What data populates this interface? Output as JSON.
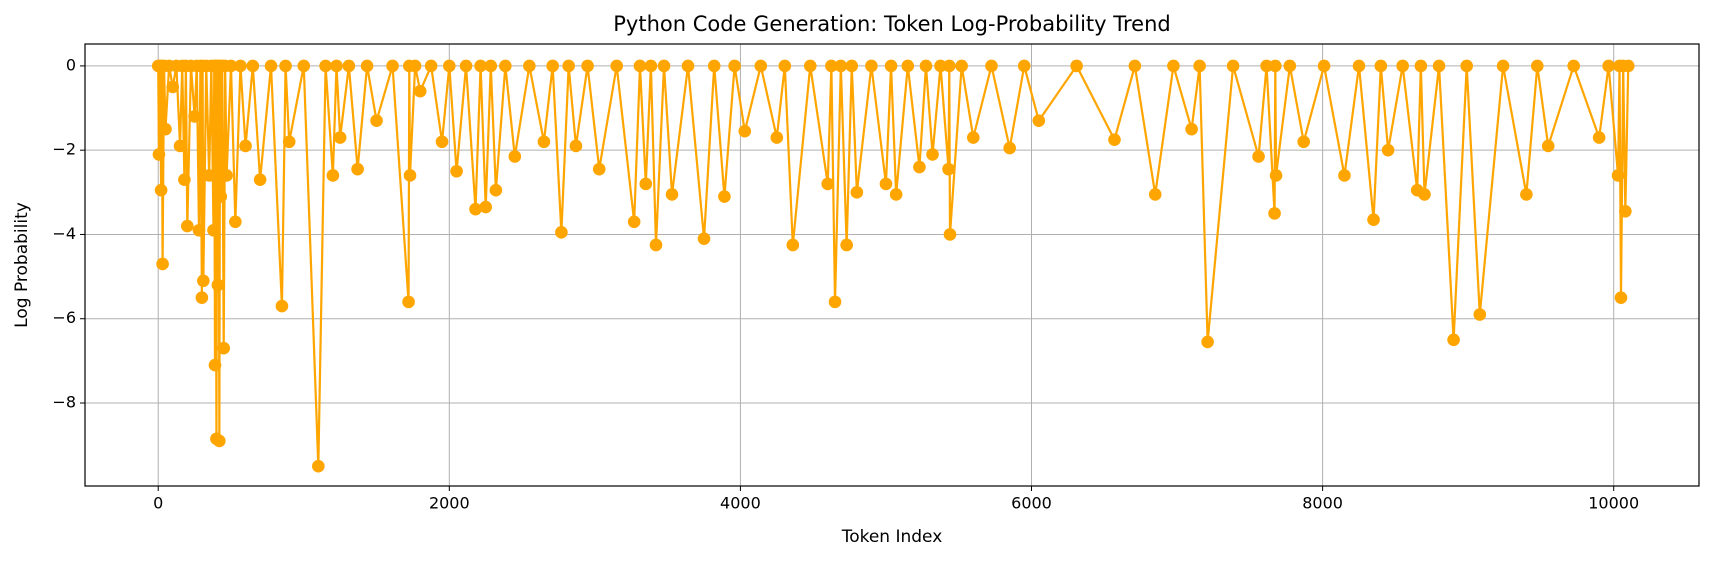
{
  "chart_data": {
    "type": "line",
    "title": "Python Code Generation: Token Log-Probability Trend",
    "xlabel": "Token Index",
    "ylabel": "Log Probability",
    "color": "#ffa500",
    "grid": true,
    "marker": "circle",
    "xlim": [
      -503,
      10586
    ],
    "ylim": [
      -9.97,
      0.52
    ],
    "xticks": [
      0,
      2000,
      4000,
      6000,
      8000,
      10000
    ],
    "yticks": [
      {
        "value": -8,
        "label": "−8"
      },
      {
        "value": -6,
        "label": "−6"
      },
      {
        "value": -4,
        "label": "−4"
      },
      {
        "value": -2,
        "label": "−2"
      },
      0
    ],
    "x": [
      0,
      5,
      12,
      20,
      25,
      30,
      40,
      50,
      75,
      100,
      125,
      150,
      165,
      180,
      190,
      200,
      225,
      250,
      265,
      280,
      290,
      300,
      305,
      310,
      330,
      350,
      365,
      380,
      385,
      390,
      395,
      400,
      405,
      410,
      415,
      420,
      425,
      430,
      440,
      450,
      460,
      470,
      500,
      530,
      565,
      600,
      650,
      700,
      775,
      850,
      875,
      900,
      1000,
      1100,
      1150,
      1200,
      1225,
      1250,
      1310,
      1370,
      1435,
      1500,
      1610,
      1720,
      1725,
      1730,
      1765,
      1800,
      1875,
      1950,
      2000,
      2050,
      2115,
      2180,
      2215,
      2250,
      2285,
      2320,
      2385,
      2450,
      2550,
      2650,
      2710,
      2770,
      2820,
      2870,
      2950,
      3030,
      3150,
      3270,
      3310,
      3350,
      3385,
      3420,
      3475,
      3530,
      3640,
      3750,
      3820,
      3890,
      3960,
      4030,
      4140,
      4250,
      4305,
      4360,
      4480,
      4600,
      4625,
      4650,
      4690,
      4730,
      4765,
      4800,
      4900,
      5000,
      5035,
      5070,
      5150,
      5230,
      5275,
      5320,
      5375,
      5430,
      5435,
      5440,
      5520,
      5600,
      5725,
      5850,
      5950,
      6050,
      6310,
      6570,
      6710,
      6850,
      6975,
      7100,
      7155,
      7210,
      7385,
      7560,
      7615,
      7670,
      7675,
      7680,
      7775,
      7870,
      8010,
      8150,
      8250,
      8350,
      8400,
      8450,
      8550,
      8650,
      8675,
      8700,
      8800,
      8900,
      8990,
      9080,
      9240,
      9400,
      9475,
      9550,
      9725,
      9900,
      9965,
      10030,
      10040,
      10050,
      10065,
      10080,
      10100
    ],
    "values": [
      0,
      -2.1,
      0,
      -2.95,
      0,
      -4.7,
      0,
      -1.5,
      0,
      -0.5,
      0,
      -1.9,
      0,
      -2.7,
      0,
      -3.8,
      0,
      -1.2,
      0,
      -3.9,
      0,
      -5.5,
      0,
      -5.1,
      0,
      -2.6,
      0,
      -3.9,
      0,
      -7.1,
      0,
      -8.85,
      0,
      -5.2,
      0,
      -8.9,
      0,
      -3.1,
      0,
      -6.7,
      0,
      -2.6,
      0,
      -3.7,
      0,
      -1.9,
      0,
      -2.7,
      0,
      -5.7,
      0,
      -1.8,
      0,
      -9.5,
      0,
      -2.6,
      0,
      -1.7,
      0,
      -2.45,
      0,
      -1.3,
      0,
      -5.6,
      0,
      -2.6,
      0,
      -0.6,
      0,
      -1.8,
      0,
      -2.5,
      0,
      -3.4,
      0,
      -3.35,
      0,
      -2.95,
      0,
      -2.15,
      0,
      -1.8,
      0,
      -3.95,
      0,
      -1.9,
      0,
      -2.45,
      0,
      -3.7,
      0,
      -2.8,
      0,
      -4.25,
      0,
      -3.05,
      0,
      -4.1,
      0,
      -3.1,
      0,
      -1.55,
      0,
      -1.7,
      0,
      -4.25,
      0,
      -2.8,
      0,
      -5.6,
      0,
      -4.25,
      0,
      -3.0,
      0,
      -2.8,
      0,
      -3.05,
      0,
      -2.4,
      0,
      -2.1,
      0,
      -2.45,
      0,
      -4.0,
      0,
      -1.7,
      0,
      -1.95,
      0,
      -1.3,
      0,
      -1.75,
      0,
      -3.05,
      0,
      -1.5,
      0,
      -6.55,
      0,
      -2.15,
      0,
      -3.5,
      0,
      -2.6,
      0,
      -1.8,
      0,
      -2.6,
      0,
      -3.65,
      0,
      -2.0,
      0,
      -2.95,
      0,
      -3.05,
      0,
      -6.5,
      0,
      -5.9,
      0,
      -3.05,
      0,
      -1.9,
      0,
      -1.7,
      0,
      -2.6,
      0,
      -5.5,
      0,
      -3.45,
      0
    ]
  }
}
